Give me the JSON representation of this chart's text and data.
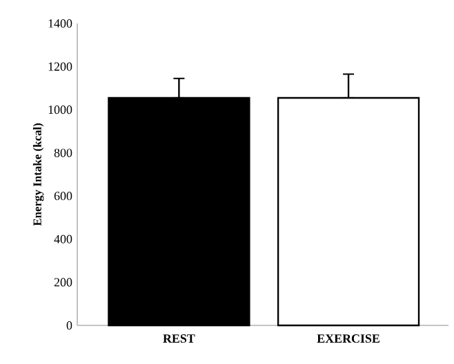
{
  "chart_data": {
    "type": "bar",
    "ylabel": "Energy Intake (kcal)",
    "categories": [
      "REST",
      "EXERCISE"
    ],
    "values": [
      1055,
      1055
    ],
    "colors": [
      "#000000",
      "#ffffff"
    ],
    "errors": [
      [
        1055,
        1145
      ],
      [
        1055,
        1165
      ]
    ],
    "ylim": [
      0,
      1400
    ],
    "yticks": [
      0,
      200,
      400,
      600,
      800,
      1000,
      1200,
      1400
    ],
    "grid": false
  }
}
